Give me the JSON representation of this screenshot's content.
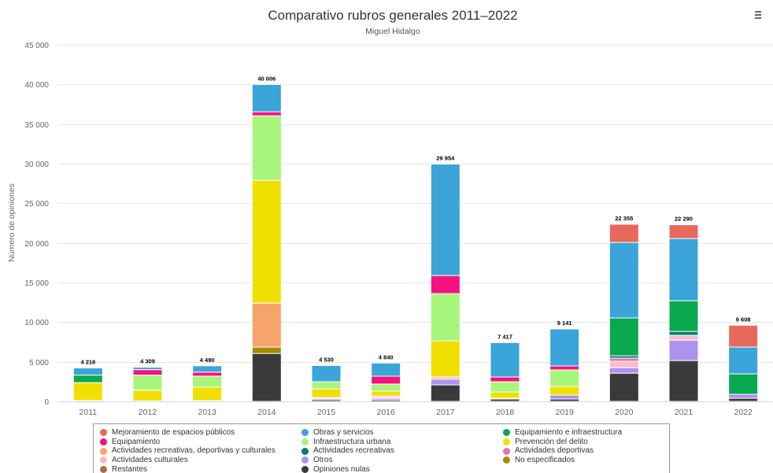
{
  "toolbar": {
    "menu_icon": "menu-icon"
  },
  "chart_data": {
    "type": "bar",
    "stacked": true,
    "title": "Comparativo rubros generales 2011–2022",
    "subtitle": "Miguel Hidalgo",
    "xlabel": "",
    "ylabel": "Número de opiniones",
    "ylim": [
      0,
      45000
    ],
    "grid": true,
    "legend_position": "bottom",
    "y_ticks": [
      0,
      5000,
      10000,
      15000,
      20000,
      25000,
      30000,
      35000,
      40000,
      45000
    ],
    "y_tick_labels": [
      "0",
      "5 000",
      "10 000",
      "15 000",
      "20 000",
      "25 000",
      "30 000",
      "35 000",
      "40 000",
      "45 000"
    ],
    "categories": [
      "2011",
      "2012",
      "2013",
      "2014",
      "2015",
      "2016",
      "2017",
      "2018",
      "2019",
      "2020",
      "2021",
      "2022"
    ],
    "stack_labels": [
      "4 218",
      "4 309",
      "4 490",
      "40 006",
      "4 530",
      "4 840",
      "29 954",
      "7 417",
      "9 141",
      "22 355",
      "22 290",
      "9 608"
    ],
    "series": [
      {
        "name": "Mejoramiento de espacios públicos",
        "color": "#e8685c",
        "values": [
          0,
          0,
          0,
          0,
          0,
          0,
          0,
          0,
          0,
          2295,
          1734,
          2756
        ]
      },
      {
        "name": "Obras y servicios",
        "color": "#3ba4d8",
        "values": [
          900,
          300,
          800,
          3456,
          2050,
          1660,
          14070,
          4340,
          4670,
          9530,
          7850,
          3380
        ]
      },
      {
        "name": "Equipamiento e infraestructura",
        "color": "#0aa84f",
        "values": [
          950,
          0,
          0,
          0,
          0,
          0,
          0,
          0,
          0,
          4770,
          3870,
          2580
        ]
      },
      {
        "name": "Equipamiento",
        "color": "#f5127e",
        "values": [
          0,
          700,
          500,
          500,
          0,
          990,
          2280,
          600,
          500,
          0,
          0,
          0
        ]
      },
      {
        "name": "Infraestructura urbana",
        "color": "#a8f57c",
        "values": [
          0,
          1900,
          1400,
          8150,
          900,
          900,
          5960,
          1290,
          2085,
          0,
          0,
          0
        ]
      },
      {
        "name": "Prevención del delito",
        "color": "#f0e000",
        "values": [
          2250,
          1350,
          1700,
          15500,
          1080,
          600,
          4560,
          790,
          1090,
          0,
          0,
          0
        ]
      },
      {
        "name": "Actividades recreativas, deportivas y culturales",
        "color": "#f7a46b",
        "values": [
          0,
          0,
          0,
          5550,
          0,
          0,
          0,
          0,
          0,
          0,
          0,
          0
        ]
      },
      {
        "name": "Actividades recreativas",
        "color": "#0a7d72",
        "values": [
          0,
          0,
          0,
          0,
          0,
          0,
          0,
          0,
          0,
          300,
          500,
          0
        ]
      },
      {
        "name": "Actividades deportivas",
        "color": "#ea72b4",
        "values": [
          0,
          0,
          0,
          0,
          0,
          150,
          0,
          0,
          0,
          400,
          0,
          0
        ]
      },
      {
        "name": "Actividades culturales",
        "color": "#f5bccb",
        "values": [
          0,
          0,
          0,
          0,
          150,
          150,
          300,
          0,
          0,
          800,
          600,
          0
        ]
      },
      {
        "name": "Otros",
        "color": "#ad92ee",
        "values": [
          0,
          0,
          0,
          0,
          150,
          200,
          700,
          100,
          500,
          700,
          2580,
          500
        ]
      },
      {
        "name": "No especificados",
        "color": "#a38c00",
        "values": [
          0,
          0,
          0,
          800,
          0,
          0,
          0,
          0,
          0,
          0,
          0,
          0
        ]
      },
      {
        "name": "Restantes",
        "color": "#a66e4c",
        "values": [
          0,
          0,
          0,
          0,
          0,
          0,
          0,
          0,
          0,
          0,
          0,
          0
        ]
      },
      {
        "name": "Opiniones nulas",
        "color": "#3a3a3a",
        "values": [
          118,
          59,
          90,
          6050,
          200,
          190,
          2084,
          297,
          296,
          3560,
          5156,
          392
        ]
      }
    ]
  }
}
